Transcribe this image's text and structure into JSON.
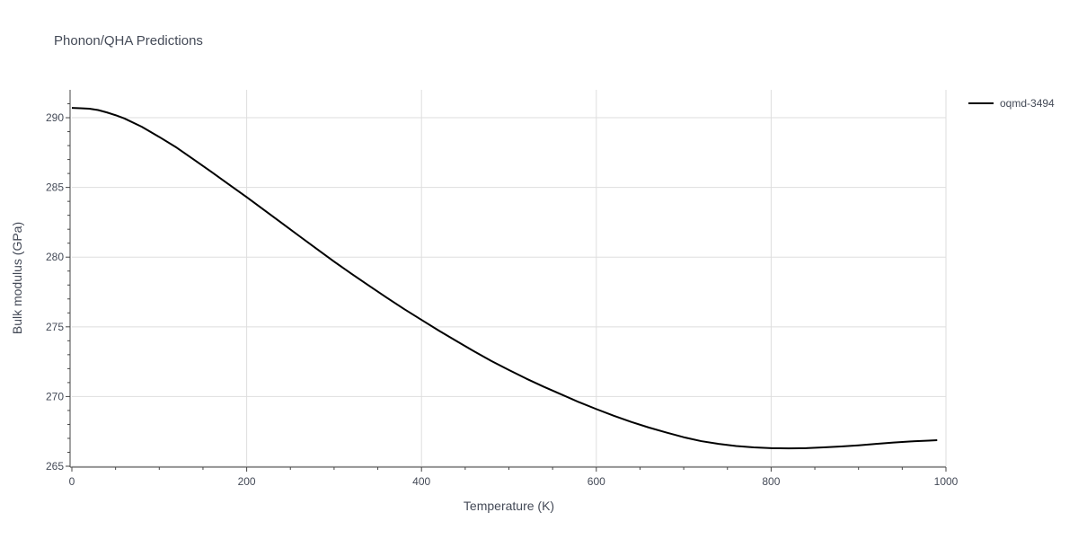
{
  "chart_data": {
    "type": "line",
    "title": "Phonon/QHA Predictions",
    "xlabel": "Temperature (K)",
    "ylabel": "Bulk modulus (GPa)",
    "xlim": [
      0,
      1000
    ],
    "ylim": [
      265,
      292
    ],
    "x_ticks": [
      0,
      200,
      400,
      600,
      800,
      1000
    ],
    "y_ticks": [
      265,
      270,
      275,
      280,
      285,
      290
    ],
    "grid": true,
    "legend_position": "top-right",
    "series": [
      {
        "name": "oqmd-3494",
        "color": "#000000",
        "x": [
          0,
          10,
          20,
          30,
          40,
          50,
          60,
          80,
          100,
          120,
          140,
          160,
          180,
          200,
          220,
          240,
          260,
          280,
          300,
          320,
          340,
          360,
          380,
          400,
          420,
          440,
          460,
          480,
          500,
          520,
          540,
          560,
          580,
          600,
          620,
          640,
          660,
          680,
          700,
          720,
          740,
          760,
          780,
          800,
          820,
          840,
          860,
          880,
          900,
          920,
          940,
          960,
          980,
          990
        ],
        "y": [
          290.7,
          290.68,
          290.65,
          290.55,
          290.38,
          290.18,
          289.95,
          289.35,
          288.62,
          287.85,
          286.98,
          286.1,
          285.2,
          284.3,
          283.38,
          282.45,
          281.52,
          280.6,
          279.68,
          278.8,
          277.95,
          277.1,
          276.28,
          275.5,
          274.72,
          273.98,
          273.25,
          272.55,
          271.9,
          271.28,
          270.7,
          270.15,
          269.6,
          269.1,
          268.62,
          268.18,
          267.78,
          267.42,
          267.08,
          266.8,
          266.6,
          266.45,
          266.35,
          266.3,
          266.28,
          266.3,
          266.35,
          266.42,
          266.5,
          266.6,
          266.7,
          266.78,
          266.84,
          266.87
        ]
      }
    ]
  }
}
